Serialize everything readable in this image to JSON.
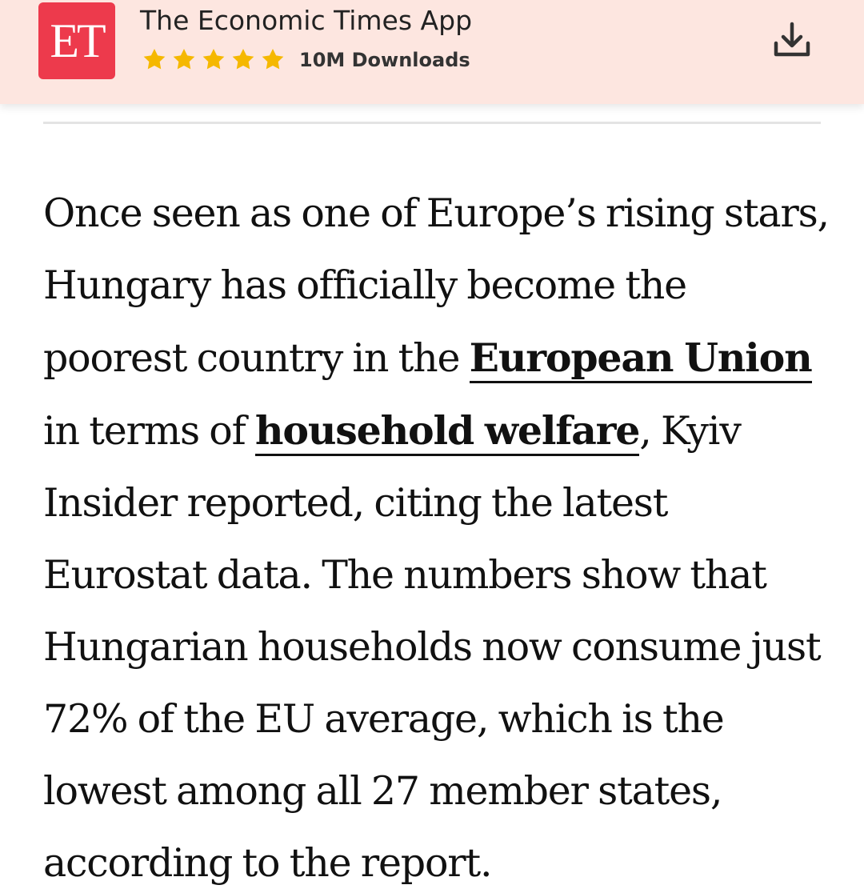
{
  "app_banner": {
    "logo_text": "ET",
    "app_name": "The Economic Times App",
    "rating_stars": 5,
    "downloads": "10M Downloads",
    "colors": {
      "background": "#fde6e0",
      "logo": "#ed3a4c",
      "star": "#f5b800"
    },
    "download_icon": "download-icon"
  },
  "article": {
    "text_before_link1": "Once seen as one of Europe’s rising stars, Hungary has officially become the poorest country in the ",
    "link1": "European Union",
    "text_between_links": " in terms of ",
    "link2": "household welfare",
    "text_after_link2": ", Kyiv Insider reported, citing the latest Eurostat data. The numbers show that Hungarian households now consume just 72% of the EU average, which is the lowest among all 27 member states, according to the report."
  }
}
